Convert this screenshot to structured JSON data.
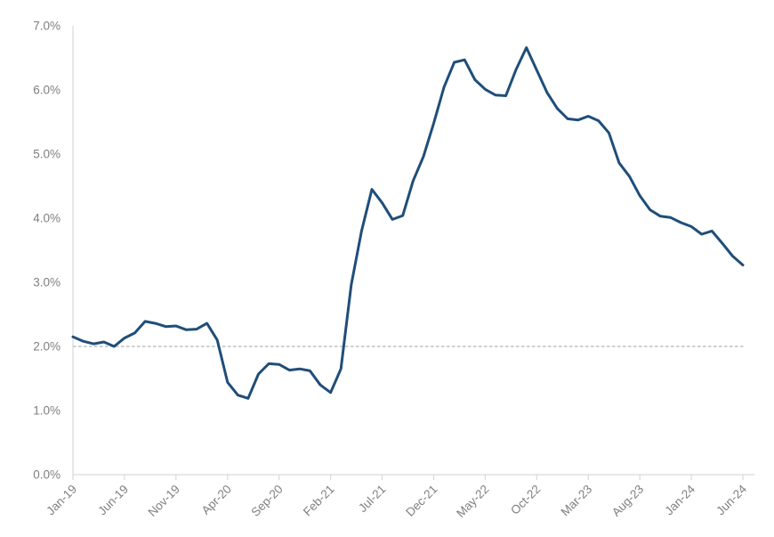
{
  "chart_data": {
    "type": "line",
    "title": "",
    "frequency": "monthly",
    "x_start": "Jan-19",
    "x_end": "Jun-24",
    "x": [
      "Jan-19",
      "Feb-19",
      "Mar-19",
      "Apr-19",
      "May-19",
      "Jun-19",
      "Jul-19",
      "Aug-19",
      "Sep-19",
      "Oct-19",
      "Nov-19",
      "Dec-19",
      "Jan-20",
      "Feb-20",
      "Mar-20",
      "Apr-20",
      "May-20",
      "Jun-20",
      "Jul-20",
      "Aug-20",
      "Sep-20",
      "Oct-20",
      "Nov-20",
      "Dec-20",
      "Jan-21",
      "Feb-21",
      "Mar-21",
      "Apr-21",
      "May-21",
      "Jun-21",
      "Jul-21",
      "Aug-21",
      "Sep-21",
      "Oct-21",
      "Nov-21",
      "Dec-21",
      "Jan-22",
      "Feb-22",
      "Mar-22",
      "Apr-22",
      "May-22",
      "Jun-22",
      "Jul-22",
      "Aug-22",
      "Sep-22",
      "Oct-22",
      "Nov-22",
      "Dec-22",
      "Jan-23",
      "Feb-23",
      "Mar-23",
      "Apr-23",
      "May-23",
      "Jun-23",
      "Jul-23",
      "Aug-23",
      "Sep-23",
      "Oct-23",
      "Nov-23",
      "Dec-23",
      "Jan-24",
      "Feb-24",
      "Mar-24",
      "Apr-24",
      "May-24",
      "Jun-24"
    ],
    "series": [
      {
        "name": "percent-change-line",
        "color": "#1f4e79",
        "values": [
          2.15,
          2.08,
          2.04,
          2.07,
          2.0,
          2.13,
          2.21,
          2.39,
          2.36,
          2.31,
          2.32,
          2.26,
          2.27,
          2.36,
          2.1,
          1.44,
          1.24,
          1.19,
          1.57,
          1.73,
          1.72,
          1.63,
          1.65,
          1.62,
          1.4,
          1.28,
          1.65,
          2.96,
          3.8,
          4.45,
          4.24,
          3.98,
          4.04,
          4.58,
          4.96,
          5.48,
          6.04,
          6.43,
          6.47,
          6.16,
          6.01,
          5.92,
          5.91,
          6.32,
          6.66,
          6.31,
          5.96,
          5.71,
          5.55,
          5.53,
          5.59,
          5.52,
          5.33,
          4.86,
          4.65,
          4.35,
          4.13,
          4.03,
          4.01,
          3.93,
          3.87,
          3.75,
          3.8,
          3.61,
          3.41,
          3.27
        ]
      }
    ],
    "ylim": [
      0,
      7
    ],
    "y_axis": {
      "tick_labels": [
        "0.0%",
        "1.0%",
        "2.0%",
        "3.0%",
        "4.0%",
        "5.0%",
        "6.0%",
        "7.0%"
      ]
    },
    "x_axis": {
      "tick_labels": [
        "Jan-19",
        "Jun-19",
        "Nov-19",
        "Apr-20",
        "Sep-20",
        "Feb-21",
        "Jul-21",
        "Dec-21",
        "May-22",
        "Oct-22",
        "Mar-23",
        "Aug-23",
        "Jan-24",
        "Jun-24"
      ],
      "tick_interval_months": 5,
      "label_rotation_deg": 45
    },
    "reference_line": {
      "y": 2.0,
      "style": "dashed"
    },
    "legend": "none",
    "grid": "none",
    "style": {
      "line_color": "#1f4e79",
      "axis_color": "#d9d9d9",
      "label_color": "#7f7f7f",
      "reference_color": "#cfcfcf",
      "background": "#ffffff"
    }
  }
}
